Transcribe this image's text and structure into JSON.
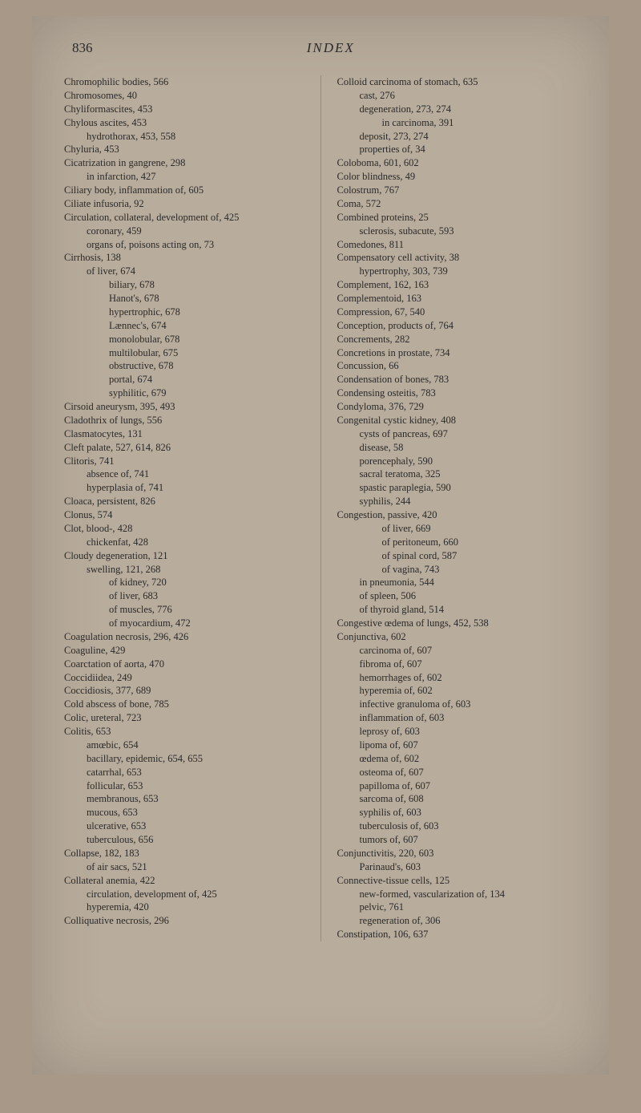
{
  "pageNumber": "836",
  "pageTitle": "INDEX",
  "leftColumn": [
    {
      "text": "Chromophilic bodies, 566",
      "indent": 0
    },
    {
      "text": "Chromosomes, 40",
      "indent": 0
    },
    {
      "text": "Chyliformascites, 453",
      "indent": 0
    },
    {
      "text": "Chylous ascites, 453",
      "indent": 0
    },
    {
      "text": "hydrothorax, 453, 558",
      "indent": 1
    },
    {
      "text": "Chyluria, 453",
      "indent": 0
    },
    {
      "text": "Cicatrization in gangrene, 298",
      "indent": 0
    },
    {
      "text": "in infarction, 427",
      "indent": 1
    },
    {
      "text": "Ciliary body, inflammation of, 605",
      "indent": 0
    },
    {
      "text": "Ciliate infusoria, 92",
      "indent": 0
    },
    {
      "text": "Circulation, collateral, development of, 425",
      "indent": 0
    },
    {
      "text": "coronary, 459",
      "indent": 1
    },
    {
      "text": "organs of, poisons acting on, 73",
      "indent": 1
    },
    {
      "text": "Cirrhosis, 138",
      "indent": 0
    },
    {
      "text": "of liver, 674",
      "indent": 1
    },
    {
      "text": "biliary, 678",
      "indent": 2
    },
    {
      "text": "Hanot's, 678",
      "indent": 2
    },
    {
      "text": "hypertrophic, 678",
      "indent": 2
    },
    {
      "text": "Lænnec's, 674",
      "indent": 2
    },
    {
      "text": "monolobular, 678",
      "indent": 2
    },
    {
      "text": "multilobular, 675",
      "indent": 2
    },
    {
      "text": "obstructive, 678",
      "indent": 2
    },
    {
      "text": "portal, 674",
      "indent": 2
    },
    {
      "text": "syphilitic, 679",
      "indent": 2
    },
    {
      "text": "Cirsoid aneurysm, 395, 493",
      "indent": 0
    },
    {
      "text": "Cladothrix of lungs, 556",
      "indent": 0
    },
    {
      "text": "Clasmatocytes, 131",
      "indent": 0
    },
    {
      "text": "Cleft palate, 527, 614, 826",
      "indent": 0
    },
    {
      "text": "Clitoris, 741",
      "indent": 0
    },
    {
      "text": "absence of, 741",
      "indent": 1
    },
    {
      "text": "hyperplasia of, 741",
      "indent": 1
    },
    {
      "text": "Cloaca, persistent, 826",
      "indent": 0
    },
    {
      "text": "Clonus, 574",
      "indent": 0
    },
    {
      "text": "Clot, blood-, 428",
      "indent": 0
    },
    {
      "text": "chickenfat, 428",
      "indent": 1
    },
    {
      "text": "Cloudy degeneration, 121",
      "indent": 0
    },
    {
      "text": "swelling, 121, 268",
      "indent": 1
    },
    {
      "text": "of kidney, 720",
      "indent": 2
    },
    {
      "text": "of liver, 683",
      "indent": 2
    },
    {
      "text": "of muscles, 776",
      "indent": 2
    },
    {
      "text": "of myocardium, 472",
      "indent": 2
    },
    {
      "text": "Coagulation necrosis, 296, 426",
      "indent": 0
    },
    {
      "text": "Coaguline, 429",
      "indent": 0
    },
    {
      "text": "Coarctation of aorta, 470",
      "indent": 0
    },
    {
      "text": "Coccidiidea, 249",
      "indent": 0
    },
    {
      "text": "Coccidiosis, 377, 689",
      "indent": 0
    },
    {
      "text": "Cold abscess of bone, 785",
      "indent": 0
    },
    {
      "text": "Colic, ureteral, 723",
      "indent": 0
    },
    {
      "text": "Colitis, 653",
      "indent": 0
    },
    {
      "text": "amœbic, 654",
      "indent": 1
    },
    {
      "text": "bacillary, epidemic, 654, 655",
      "indent": 1
    },
    {
      "text": "catarrhal, 653",
      "indent": 1
    },
    {
      "text": "follicular, 653",
      "indent": 1
    },
    {
      "text": "membranous, 653",
      "indent": 1
    },
    {
      "text": "mucous, 653",
      "indent": 1
    },
    {
      "text": "ulcerative, 653",
      "indent": 1
    },
    {
      "text": "tuberculous, 656",
      "indent": 1
    },
    {
      "text": "Collapse, 182, 183",
      "indent": 0
    },
    {
      "text": "of air sacs, 521",
      "indent": 1
    },
    {
      "text": "Collateral anemia, 422",
      "indent": 0
    },
    {
      "text": "circulation, development of, 425",
      "indent": 1
    },
    {
      "text": "hyperemia, 420",
      "indent": 1
    },
    {
      "text": "Colliquative necrosis, 296",
      "indent": 0
    }
  ],
  "rightColumn": [
    {
      "text": "Colloid carcinoma of stomach, 635",
      "indent": 0
    },
    {
      "text": "cast, 276",
      "indent": 1
    },
    {
      "text": "degeneration, 273, 274",
      "indent": 1
    },
    {
      "text": "in carcinoma, 391",
      "indent": 2
    },
    {
      "text": "deposit, 273, 274",
      "indent": 1
    },
    {
      "text": "properties of, 34",
      "indent": 1
    },
    {
      "text": "Coloboma, 601, 602",
      "indent": 0
    },
    {
      "text": "Color blindness, 49",
      "indent": 0
    },
    {
      "text": "Colostrum, 767",
      "indent": 0
    },
    {
      "text": "Coma, 572",
      "indent": 0
    },
    {
      "text": "Combined proteins, 25",
      "indent": 0
    },
    {
      "text": "sclerosis, subacute, 593",
      "indent": 1
    },
    {
      "text": "Comedones, 811",
      "indent": 0
    },
    {
      "text": "Compensatory cell activity, 38",
      "indent": 0
    },
    {
      "text": "hypertrophy, 303, 739",
      "indent": 1
    },
    {
      "text": "Complement, 162, 163",
      "indent": 0
    },
    {
      "text": "Complementoid, 163",
      "indent": 0
    },
    {
      "text": "Compression, 67, 540",
      "indent": 0
    },
    {
      "text": "Conception, products of, 764",
      "indent": 0
    },
    {
      "text": "Concrements, 282",
      "indent": 0
    },
    {
      "text": "Concretions in prostate, 734",
      "indent": 0
    },
    {
      "text": "Concussion, 66",
      "indent": 0
    },
    {
      "text": "Condensation of bones, 783",
      "indent": 0
    },
    {
      "text": "Condensing osteitis, 783",
      "indent": 0
    },
    {
      "text": "Condyloma, 376, 729",
      "indent": 0
    },
    {
      "text": "Congenital cystic kidney, 408",
      "indent": 0
    },
    {
      "text": "cysts of pancreas, 697",
      "indent": 1
    },
    {
      "text": "disease, 58",
      "indent": 1
    },
    {
      "text": "porencephaly, 590",
      "indent": 1
    },
    {
      "text": "sacral teratoma, 325",
      "indent": 1
    },
    {
      "text": "spastic paraplegia, 590",
      "indent": 1
    },
    {
      "text": "syphilis, 244",
      "indent": 1
    },
    {
      "text": "Congestion, passive, 420",
      "indent": 0
    },
    {
      "text": "of liver, 669",
      "indent": 2
    },
    {
      "text": "of peritoneum, 660",
      "indent": 2
    },
    {
      "text": "of spinal cord, 587",
      "indent": 2
    },
    {
      "text": "of vagina, 743",
      "indent": 2
    },
    {
      "text": "in pneumonia, 544",
      "indent": 1
    },
    {
      "text": "of spleen, 506",
      "indent": 1
    },
    {
      "text": "of thyroid gland, 514",
      "indent": 1
    },
    {
      "text": "Congestive œdema of lungs, 452, 538",
      "indent": 0
    },
    {
      "text": "Conjunctiva, 602",
      "indent": 0
    },
    {
      "text": "carcinoma of, 607",
      "indent": 1
    },
    {
      "text": "fibroma of, 607",
      "indent": 1
    },
    {
      "text": "hemorrhages of, 602",
      "indent": 1
    },
    {
      "text": "hyperemia of, 602",
      "indent": 1
    },
    {
      "text": "infective granuloma of, 603",
      "indent": 1
    },
    {
      "text": "inflammation of, 603",
      "indent": 1
    },
    {
      "text": "leprosy of, 603",
      "indent": 1
    },
    {
      "text": "lipoma of, 607",
      "indent": 1
    },
    {
      "text": "œdema of, 602",
      "indent": 1
    },
    {
      "text": "osteoma of, 607",
      "indent": 1
    },
    {
      "text": "papilloma of, 607",
      "indent": 1
    },
    {
      "text": "sarcoma of, 608",
      "indent": 1
    },
    {
      "text": "syphilis of, 603",
      "indent": 1
    },
    {
      "text": "tuberculosis of, 603",
      "indent": 1
    },
    {
      "text": "tumors of, 607",
      "indent": 1
    },
    {
      "text": "Conjunctivitis, 220, 603",
      "indent": 0
    },
    {
      "text": "Parinaud's, 603",
      "indent": 1
    },
    {
      "text": "Connective-tissue cells, 125",
      "indent": 0
    },
    {
      "text": "new-formed, vascularization of, 134",
      "indent": 1
    },
    {
      "text": "pelvic, 761",
      "indent": 1
    },
    {
      "text": "regeneration of, 306",
      "indent": 1
    },
    {
      "text": "Constipation, 106, 637",
      "indent": 0
    }
  ]
}
